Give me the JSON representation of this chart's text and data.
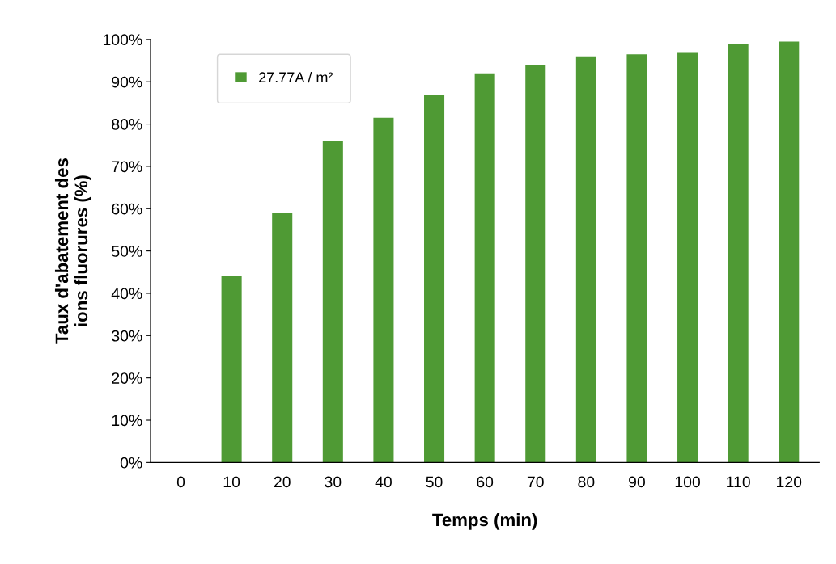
{
  "chart_data": {
    "type": "bar",
    "xlabel": "Temps (min)",
    "ylabel": "Taux d'abatement des\nions fluorures (%)",
    "categories": [
      "0",
      "10",
      "20",
      "30",
      "40",
      "50",
      "60",
      "70",
      "80",
      "90",
      "100",
      "110",
      "120"
    ],
    "series": [
      {
        "name": "27.77A / m²",
        "color": "#4f9a34",
        "values": [
          0,
          44,
          59,
          76,
          81.5,
          87,
          92,
          94,
          96,
          96.5,
          97,
          99,
          99.5
        ]
      }
    ],
    "ylim": [
      0,
      100
    ],
    "yticks": [
      {
        "value": 0,
        "label": "0%"
      },
      {
        "value": 10,
        "label": "10%"
      },
      {
        "value": 20,
        "label": "20%"
      },
      {
        "value": 30,
        "label": "30%"
      },
      {
        "value": 40,
        "label": "40%"
      },
      {
        "value": 50,
        "label": "50%"
      },
      {
        "value": 60,
        "label": "60%"
      },
      {
        "value": 70,
        "label": "70%"
      },
      {
        "value": 80,
        "label": "80%"
      },
      {
        "value": 90,
        "label": "90%"
      },
      {
        "value": 100,
        "label": "100%"
      }
    ],
    "grid": false,
    "legend": "top left"
  }
}
